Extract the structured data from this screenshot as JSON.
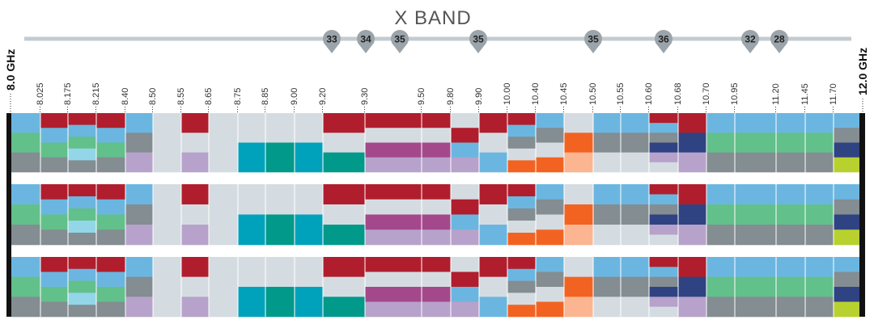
{
  "title": "X BAND",
  "start_label": "8.0 GHz",
  "end_label": "12.0 GHz",
  "pins": [
    "33",
    "34",
    "35",
    "35",
    "35",
    "36",
    "32",
    "28"
  ],
  "frequencies": [
    "8.025",
    "8.175",
    "8.215",
    "8.40",
    "8.50",
    "8.55",
    "8.65",
    "8.75",
    "8.85",
    "9.00",
    "9.20",
    "9.30",
    "9.50",
    "9.80",
    "9.90",
    "10.00",
    "10.40",
    "10.45",
    "10.50",
    "10.55",
    "10.60",
    "10.68",
    "10.70",
    "10.95",
    "11.20",
    "11.45",
    "11.70"
  ]
}
